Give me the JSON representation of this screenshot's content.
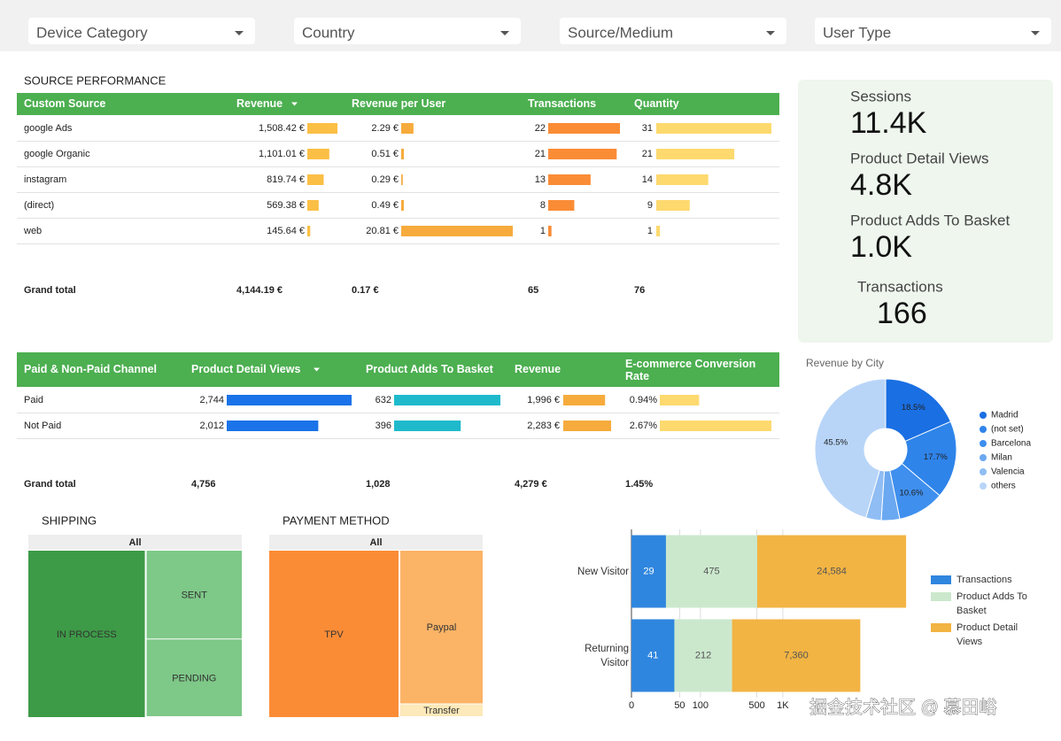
{
  "filters": [
    "Device Category",
    "Country",
    "Source/Medium",
    "User Type"
  ],
  "source_table": {
    "title": "SOURCE PERFORMANCE",
    "headers": [
      "Custom Source",
      "Revenue",
      "Revenue per User",
      "Transactions",
      "Quantity"
    ],
    "sources": [
      "google Ads",
      "google Organic",
      "instagram",
      "(direct)",
      "web"
    ],
    "columns": [
      {
        "values": [
          1508.42,
          1101.01,
          819.74,
          569.38,
          145.64
        ],
        "value_labels": [
          "1,508.42 €",
          "1,101.01 €",
          "819.74 €",
          "569.38 €",
          "145.64 €"
        ],
        "color": "#fbbf45"
      },
      {
        "values": [
          2.29,
          0.51,
          0.29,
          0.49,
          20.81
        ],
        "value_labels": [
          "2.29 €",
          "0.51 €",
          "0.29 €",
          "0.49 €",
          "20.81 €"
        ],
        "color": "#f6ab3c"
      },
      {
        "values": [
          22,
          21,
          13,
          8,
          1
        ],
        "color": "#fb8c36"
      },
      {
        "values": [
          31,
          21,
          14,
          9,
          1
        ],
        "color": "#fdd96e"
      }
    ],
    "total_label": "Grand total",
    "totals": [
      {
        "value": 4144.19,
        "label": "4,144.19 €"
      },
      {
        "value": 0.17,
        "label": "0.17 €"
      },
      65,
      76
    ]
  },
  "channel_table": {
    "headers": [
      "Paid & Non-Paid Channel",
      "Product Detail Views",
      "Product Adds To Basket",
      "Revenue",
      "E-commerce Conversion Rate"
    ],
    "channels": [
      "Paid",
      "Not Paid"
    ],
    "columns": [
      {
        "values": [
          2744,
          2012
        ],
        "value_labels": [
          "2,744",
          "2,012"
        ],
        "color": "#1a73e8"
      },
      {
        "values": [
          632,
          396
        ],
        "color": "#1ebacc"
      },
      {
        "values": [
          1996,
          2283
        ],
        "value_labels": [
          "1,996 €",
          "2,283 €"
        ],
        "color": "#f6ab3c"
      },
      {
        "values": [
          0.94,
          2.67
        ],
        "value_labels": [
          "0.94%",
          "2.67%"
        ],
        "color": "#fdd96e"
      }
    ],
    "total_label": "Grand total",
    "totals": [
      {
        "value": 4756,
        "label": "4,756"
      },
      {
        "value": 1028,
        "label": "1,028"
      },
      {
        "value": 4279,
        "label": "4,279 €"
      },
      {
        "value": 1.45,
        "label": "1.45%"
      }
    ]
  },
  "scorecards": [
    {
      "label": "Sessions",
      "value": "11.4K"
    },
    {
      "label": "Product Detail Views",
      "value": "4.8K"
    },
    {
      "label": "Product Adds To Basket",
      "value": "1.0K"
    },
    {
      "label": "Transactions",
      "value": 166
    }
  ],
  "chart_data": [
    {
      "type": "pie",
      "title": "Revenue by City",
      "categories": [
        "Madrid",
        "(not set)",
        "Barcelona",
        "Milan",
        "Valencia",
        "others"
      ],
      "values": [
        18.5,
        17.7,
        10.6,
        4.2,
        3.5,
        45.5
      ],
      "value_labels": [
        "18.5%",
        "17.7%",
        "10.6%",
        null,
        null,
        "45.5%"
      ],
      "colors": [
        "#1a6fe3",
        "#2f84ea",
        "#3f8fee",
        "#6aa8f1",
        "#8fbdf4",
        "#b8d5f8"
      ],
      "donut": true
    },
    {
      "type": "treemap",
      "title": "SHIPPING",
      "root": "All",
      "categories": [
        "IN PROCESS",
        "SENT",
        "PENDING"
      ],
      "values": [
        55,
        24,
        21
      ],
      "colors": [
        "#3d9a47",
        "#7ec888",
        "#7ec888"
      ]
    },
    {
      "type": "treemap",
      "title": "PAYMENT METHOD",
      "root": "All",
      "categories": [
        "TPV",
        "Paypal",
        "Transfer"
      ],
      "values": [
        61,
        36,
        3
      ],
      "colors": [
        "#fb8c36",
        "#fbb366",
        "#fde9b9"
      ]
    },
    {
      "type": "bar",
      "orientation": "horizontal",
      "stacked": true,
      "categories": [
        "New Visitor",
        "Returning Visitor"
      ],
      "series": [
        {
          "name": "Transactions",
          "color": "#2f86de",
          "values": [
            29,
            41
          ]
        },
        {
          "name": "Product Adds To Basket",
          "color": "#cbe8cd",
          "values": [
            475,
            212
          ]
        },
        {
          "name": "Product Detail Views",
          "color": "#f2b443",
          "values": [
            24584,
            7360
          ],
          "value_labels": [
            "24,584",
            "7,360"
          ]
        }
      ],
      "xlim": [
        0,
        37000
      ],
      "xticks": [
        0,
        50,
        100,
        500,
        {
          "value": 1000,
          "label": "1K"
        }
      ],
      "xscale": "symlog",
      "grid": true
    }
  ],
  "watermark": "掘金技术社区 @ 慕田峪"
}
